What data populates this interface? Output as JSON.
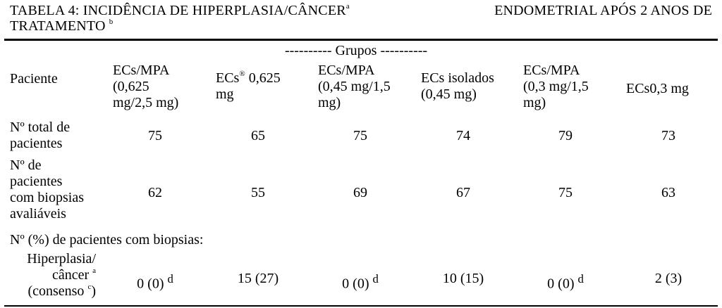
{
  "title": {
    "line1_a": "TABELA 4: INCIDÊNCIA DE HIPERPLASIA/CÂNCER",
    "line1_sup": "a",
    "line1_b": "ENDOMETRIAL APÓS 2 ANOS DE",
    "line2": "TRATAMENTO",
    "line2_sup": "b"
  },
  "grupos_label": "---------- Grupos ----------",
  "headers": {
    "paciente": "Paciente",
    "col1": [
      "ECs/MPA",
      "(0,625",
      "mg/2,5 mg)"
    ],
    "col2_a": "ECs",
    "col2_sup": "®",
    "col2_b": " 0,625",
    "col2_c": "mg",
    "col3": [
      "ECs/MPA",
      "(0,45 mg/1,5",
      "mg)"
    ],
    "col4": [
      "ECs isolados",
      "(0,45 mg)"
    ],
    "col5": [
      "ECs/MPA",
      "(0,3 mg/1,5",
      "mg)"
    ],
    "col6": "ECs0,3 mg"
  },
  "rows": {
    "total": {
      "label": [
        "Nº total de",
        "pacientes"
      ],
      "values": [
        "75",
        "65",
        "75",
        "74",
        "79",
        "73"
      ]
    },
    "biopsias": {
      "label": [
        "Nº de",
        "pacientes",
        "com biopsias",
        "avaliáveis"
      ],
      "values": [
        "62",
        "55",
        "69",
        "67",
        "75",
        "63"
      ]
    },
    "section_label": "Nº (%) de pacientes com biopsias:",
    "hiperplasia": {
      "label1": "Hiperplasia/",
      "label2": "câncer",
      "label2_sup": "a",
      "label3_a": "(consenso",
      "label3_sup": "c",
      "label3_b": ")",
      "values": [
        "0 (0)",
        "15 (27)",
        "0 (0)",
        "10 (15)",
        "0 (0)",
        "2 (3)"
      ],
      "value_sups": [
        "d",
        "",
        "d",
        "",
        "d",
        ""
      ]
    }
  }
}
